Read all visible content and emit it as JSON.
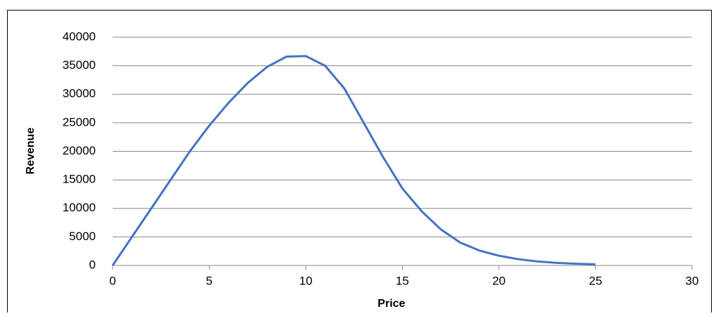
{
  "chart_data": {
    "type": "line",
    "x_label": "Price",
    "y_label": "Revenue",
    "x": [
      0,
      1,
      2,
      3,
      4,
      5,
      6,
      7,
      8,
      9,
      10,
      11,
      12,
      13,
      14,
      15,
      16,
      17,
      18,
      19,
      20,
      21,
      22,
      23,
      24,
      25
    ],
    "series": [
      {
        "name": "Revenue",
        "color": "#4472c4",
        "values": [
          0,
          5000,
          10000,
          15000,
          20000,
          24500,
          28500,
          32000,
          34800,
          36600,
          36700,
          35000,
          31000,
          25000,
          19000,
          13500,
          9500,
          6300,
          4000,
          2600,
          1700,
          1100,
          700,
          450,
          300,
          200
        ]
      }
    ],
    "xlim": [
      0,
      30
    ],
    "xticks": [
      0,
      5,
      10,
      15,
      20,
      25,
      30
    ],
    "ylim": [
      0,
      40000
    ],
    "yticks": [
      0,
      5000,
      10000,
      15000,
      20000,
      25000,
      30000,
      35000,
      40000
    ],
    "grid": true
  }
}
